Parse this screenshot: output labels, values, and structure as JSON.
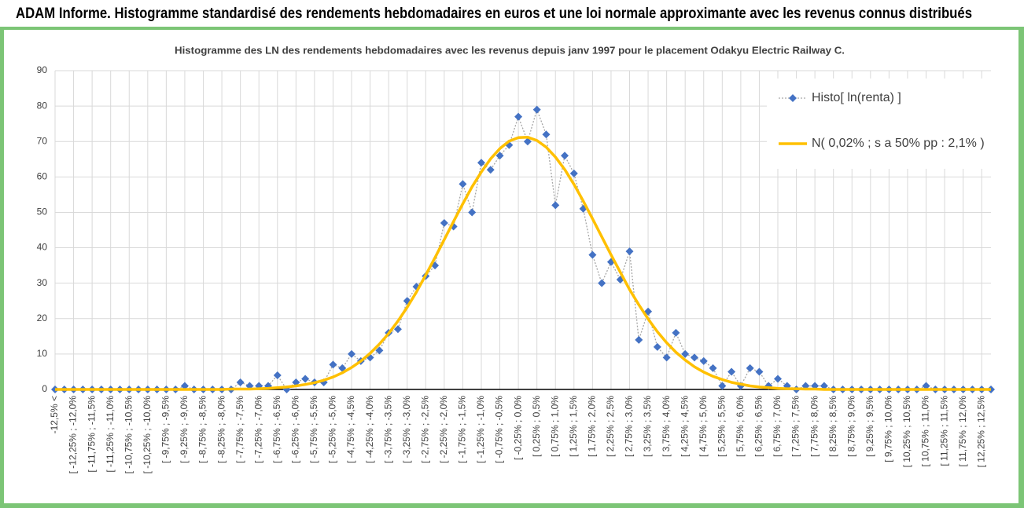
{
  "chart_data": {
    "type": "line",
    "header": "ADAM Informe. Histogramme standardisé des rendements hebdomadaires en euros et une loi normale approximante avec les revenus connus distribués",
    "title": "Histogramme des LN des rendements hebdomadaires avec les revenus depuis janv 1997 pour le placement Odakyu Electric Railway C.",
    "categories": [
      "-12,5% <",
      null,
      "[ -12,25% ; -12,0%",
      null,
      "[ -11,75% ; -11,5%",
      null,
      "[ -11,25% ; -11,0%",
      null,
      "[ -10,75% ; -10,5%",
      null,
      "[ -10,25% ; -10,0%",
      null,
      "[ -9,75% ; -9,5%",
      null,
      "[ -9,25% ; -9,0%",
      null,
      "[ -8,75% ; -8,5%",
      null,
      "[ -8,25% ; -8,0%",
      null,
      "[ -7,75% ; -7,5%",
      null,
      "[ -7,25% ; -7,0%",
      null,
      "[ -6,75% ; -6,5%",
      null,
      "[ -6,25% ; -6,0%",
      null,
      "[ -5,75% ; -5,5%",
      null,
      "[ -5,25% ; -5,0%",
      null,
      "[ -4,75% ; -4,5%",
      null,
      "[ -4,25% ; -4,0%",
      null,
      "[ -3,75% ; -3,5%",
      null,
      "[ -3,25% ; -3,0%",
      null,
      "[ -2,75% ; -2,5%",
      null,
      "[ -2,25% ; -2,0%",
      null,
      "[ -1,75% ; -1,5%",
      null,
      "[ -1,25% ; -1,0%",
      null,
      "[ -0,75% ; -0,5%",
      null,
      "[ -0,25% ; 0,0%",
      null,
      "[ 0,25% ; 0,5%",
      null,
      "[ 0,75% ; 1,0%",
      null,
      "[ 1,25% ; 1,5%",
      null,
      "[ 1,75% ; 2,0%",
      null,
      "[ 2,25% ; 2,5%",
      null,
      "[ 2,75% ; 3,0%",
      null,
      "[ 3,25% ; 3,5%",
      null,
      "[ 3,75% ; 4,0%",
      null,
      "[ 4,25% ; 4,5%",
      null,
      "[ 4,75% ; 5,0%",
      null,
      "[ 5,25% ; 5,5%",
      null,
      "[ 5,75% ; 6,0%",
      null,
      "[ 6,25% ; 6,5%",
      null,
      "[ 6,75% ; 7,0%",
      null,
      "[ 7,25% ; 7,5%",
      null,
      "[ 7,75% ; 8,0%",
      null,
      "[ 8,25% ; 8,5%",
      null,
      "[ 8,75% ; 9,0%",
      null,
      "[ 9,25% ; 9,5%",
      null,
      "[ 9,75% ; 10,0%",
      null,
      "[ 10,25% ; 10,5%",
      null,
      "[ 10,75% ; 11,0%",
      null,
      "[ 11,25% ; 11,5%",
      null,
      "[ 11,75% ; 12,0%",
      null,
      "[ 12,25% ; 12,5%",
      null
    ],
    "series": [
      {
        "name": "Histo[ ln(renta) ]",
        "color": "#4472c4",
        "values": [
          0,
          0,
          0,
          0,
          0,
          0,
          0,
          0,
          0,
          0,
          0,
          0,
          0,
          0,
          1,
          0,
          0,
          0,
          0,
          0,
          2,
          1,
          1,
          1,
          4,
          0,
          2,
          3,
          2,
          2,
          7,
          6,
          10,
          8,
          9,
          11,
          16,
          17,
          25,
          29,
          32,
          35,
          47,
          46,
          58,
          50,
          64,
          62,
          66,
          69,
          77,
          70,
          79,
          72,
          52,
          66,
          61,
          51,
          38,
          30,
          36,
          31,
          39,
          14,
          22,
          12,
          9,
          16,
          10,
          9,
          8,
          6,
          1,
          5,
          1,
          6,
          5,
          1,
          3,
          1,
          0,
          1,
          1,
          1,
          0,
          0,
          0,
          0,
          0,
          0,
          0,
          0,
          0,
          0,
          1,
          0,
          0,
          0,
          0,
          0,
          0,
          0
        ]
      },
      {
        "name": "N( 0,02% ; s a 50% pp : 2,1% )",
        "color": "#ffc000",
        "values": [
          0,
          0,
          0,
          0,
          0,
          0,
          0,
          0,
          0,
          0,
          0,
          0,
          0,
          0,
          0,
          0,
          0,
          0,
          0,
          0.1,
          0.1,
          0.1,
          0.2,
          0.3,
          0.5,
          0.7,
          1.0,
          1.4,
          1.9,
          2.6,
          3.5,
          4.7,
          6.2,
          8.0,
          10.2,
          12.8,
          15.8,
          19.3,
          23.2,
          27.5,
          32.3,
          37.2,
          42.3,
          47.4,
          52.4,
          57.2,
          61.4,
          65.1,
          68.0,
          70.1,
          71.1,
          71.2,
          70.3,
          68.4,
          65.6,
          62.1,
          57.9,
          53.2,
          48.2,
          43.1,
          38.0,
          33.1,
          28.2,
          23.9,
          19.9,
          16.3,
          13.2,
          10.5,
          8.3,
          6.4,
          4.9,
          3.7,
          2.8,
          2.0,
          1.5,
          1.0,
          0.7,
          0.5,
          0.3,
          0.2,
          0.2,
          0.1,
          0.1,
          0,
          0,
          0,
          0,
          0,
          0,
          0,
          0,
          0,
          0,
          0,
          0,
          0,
          0,
          0,
          0,
          0,
          0,
          0
        ]
      }
    ],
    "ylim": [
      0,
      90
    ],
    "yticks": [
      0,
      10,
      20,
      30,
      40,
      50,
      60,
      70,
      80,
      90
    ],
    "grid": true,
    "legend": "top-right"
  }
}
